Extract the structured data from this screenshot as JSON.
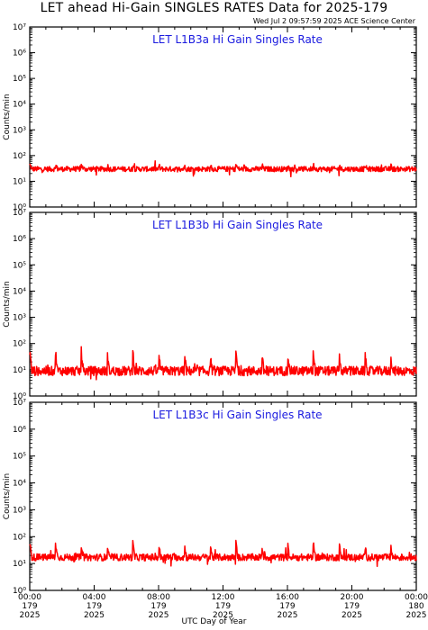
{
  "header": {
    "title": "LET ahead Hi-Gain SINGLES RATES Data for 2025-179",
    "timestamp": "Wed Jul  2 09:57:59 2025 ACE Science Center"
  },
  "colors": {
    "series": "#ff0000",
    "panel_title": "#1a1adf",
    "axes": "#000000"
  },
  "chart_data": [
    {
      "type": "line",
      "title": "LET L1B3a Hi Gain Singles Rate",
      "ylabel": "Counts/min",
      "yscale": "log",
      "ylim": [
        1,
        10000000
      ],
      "yticks": [
        "10⁰",
        "10¹",
        "10²",
        "10³",
        "10⁴",
        "10⁵",
        "10⁶",
        "10⁷"
      ],
      "xlim": [
        "2025-179 00:00",
        "2025-180 00:00"
      ],
      "series": [
        {
          "baseline": 30,
          "noise_decades": 0.1,
          "spike_period_hours": 1.6,
          "spike_peak": 45
        }
      ]
    },
    {
      "type": "line",
      "title": "LET L1B3b Hi Gain Singles Rate",
      "ylabel": "Counts/min",
      "yscale": "log",
      "ylim": [
        1,
        10000000
      ],
      "yticks": [
        "10⁰",
        "10¹",
        "10²",
        "10³",
        "10⁴",
        "10⁵",
        "10⁶",
        "10⁷"
      ],
      "xlim": [
        "2025-179 00:00",
        "2025-180 00:00"
      ],
      "series": [
        {
          "baseline": 9,
          "noise_decades": 0.18,
          "spike_period_hours": 1.6,
          "spike_peak": 50
        }
      ]
    },
    {
      "type": "line",
      "title": "LET L1B3c Hi Gain Singles Rate",
      "ylabel": "Counts/min",
      "yscale": "log",
      "ylim": [
        1,
        10000000
      ],
      "yticks": [
        "10⁰",
        "10¹",
        "10²",
        "10³",
        "10⁴",
        "10⁵",
        "10⁶",
        "10⁷"
      ],
      "xlim": [
        "2025-179 00:00",
        "2025-180 00:00"
      ],
      "series": [
        {
          "baseline": 17,
          "noise_decades": 0.13,
          "spike_period_hours": 1.6,
          "spike_peak": 55
        }
      ]
    }
  ],
  "xaxis": {
    "title": "UTC Day of Year",
    "ticks": [
      {
        "time": "00:00",
        "doy": "179",
        "year": "2025",
        "hour": 0
      },
      {
        "time": "04:00",
        "doy": "179",
        "year": "2025",
        "hour": 4
      },
      {
        "time": "08:00",
        "doy": "179",
        "year": "2025",
        "hour": 8
      },
      {
        "time": "12:00",
        "doy": "179",
        "year": "2025",
        "hour": 12
      },
      {
        "time": "16:00",
        "doy": "179",
        "year": "2025",
        "hour": 16
      },
      {
        "time": "20:00",
        "doy": "179",
        "year": "2025",
        "hour": 20
      },
      {
        "time": "00:00",
        "doy": "180",
        "year": "2025",
        "hour": 24
      }
    ]
  }
}
